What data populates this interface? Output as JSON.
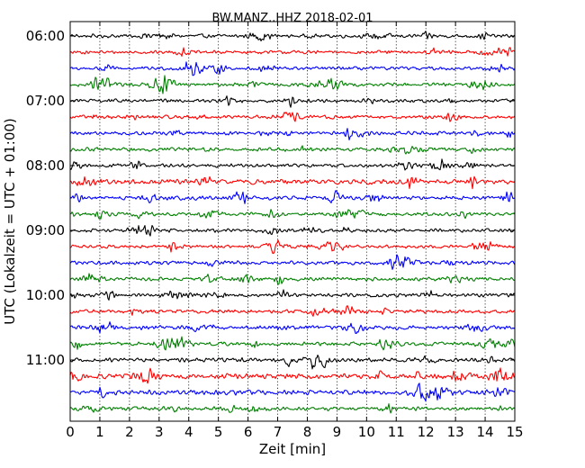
{
  "chart_data": {
    "type": "line",
    "title": "BW.MANZ..HHZ 2018-02-01",
    "xlabel": "Zeit  [min]",
    "ylabel": "UTC (Lokalzeit = UTC + 01:00)",
    "xlim": [
      0,
      15
    ],
    "x_ticks": [
      "0",
      "1",
      "2",
      "3",
      "4",
      "5",
      "6",
      "7",
      "8",
      "9",
      "10",
      "11",
      "12",
      "13",
      "14",
      "15"
    ],
    "y_ticks": [
      "06:00",
      "07:00",
      "08:00",
      "09:00",
      "10:00",
      "11:00"
    ],
    "grid": "vertical dotted",
    "trace_colors": [
      "#000000",
      "#ff0000",
      "#0000ff",
      "#007f00"
    ],
    "traces": [
      {
        "start": "06:00",
        "color": "#000000",
        "amplitude": 0.13
      },
      {
        "start": "06:15",
        "color": "#ff0000",
        "amplitude": 0.12
      },
      {
        "start": "06:30",
        "color": "#0000ff",
        "amplitude": 0.12
      },
      {
        "start": "06:45",
        "color": "#007f00",
        "amplitude": 0.12
      },
      {
        "start": "07:00",
        "color": "#000000",
        "amplitude": 0.12
      },
      {
        "start": "07:15",
        "color": "#ff0000",
        "amplitude": 0.12
      },
      {
        "start": "07:30",
        "color": "#0000ff",
        "amplitude": 0.12
      },
      {
        "start": "07:45",
        "color": "#007f00",
        "amplitude": 0.13
      },
      {
        "start": "08:00",
        "color": "#000000",
        "amplitude": 0.12
      },
      {
        "start": "08:15",
        "color": "#ff0000",
        "amplitude": 0.16
      },
      {
        "start": "08:30",
        "color": "#0000ff",
        "amplitude": 0.14
      },
      {
        "start": "08:45",
        "color": "#007f00",
        "amplitude": 0.12
      },
      {
        "start": "09:00",
        "color": "#000000",
        "amplitude": 0.12
      },
      {
        "start": "09:15",
        "color": "#ff0000",
        "amplitude": 0.12
      },
      {
        "start": "09:30",
        "color": "#0000ff",
        "amplitude": 0.13
      },
      {
        "start": "09:45",
        "color": "#007f00",
        "amplitude": 0.13
      },
      {
        "start": "10:00",
        "color": "#000000",
        "amplitude": 0.12
      },
      {
        "start": "10:15",
        "color": "#ff0000",
        "amplitude": 0.13
      },
      {
        "start": "10:30",
        "color": "#0000ff",
        "amplitude": 0.14
      },
      {
        "start": "10:45",
        "color": "#007f00",
        "amplitude": 0.13
      },
      {
        "start": "11:00",
        "color": "#000000",
        "amplitude": 0.15
      },
      {
        "start": "11:15",
        "color": "#ff0000",
        "amplitude": 0.17
      },
      {
        "start": "11:30",
        "color": "#0000ff",
        "amplitude": 0.17
      },
      {
        "start": "11:45",
        "color": "#007f00",
        "amplitude": 0.13
      }
    ]
  }
}
